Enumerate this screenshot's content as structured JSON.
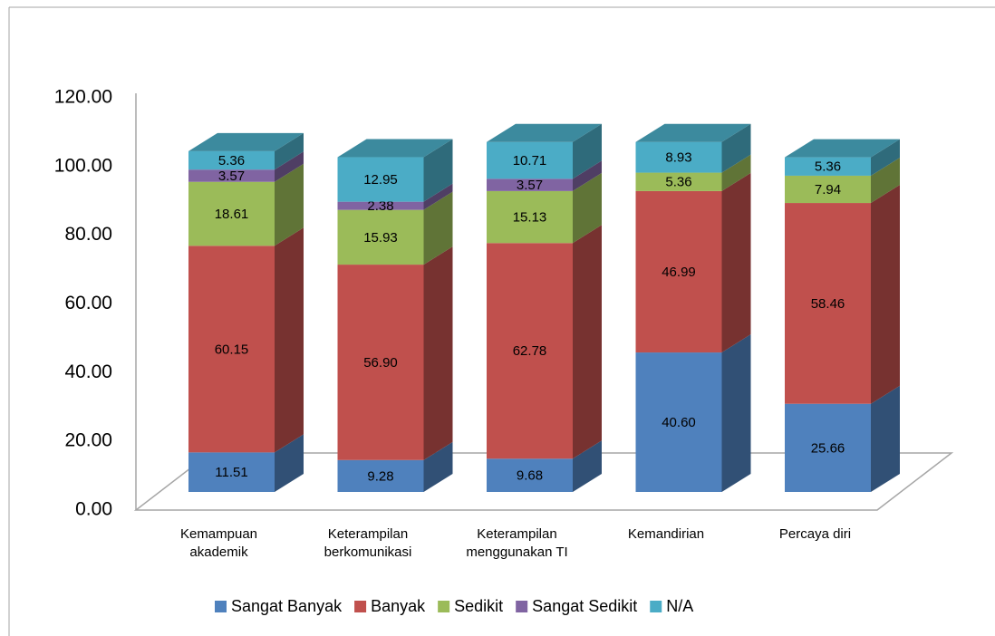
{
  "chart_data": {
    "type": "bar3d_stacked",
    "categories": [
      "Kemampuan\nakademik",
      "Keterampilan\nberkomunikasi",
      "Keterampilan\nmenggunakan TI",
      "Kemandirian",
      "Percaya diri"
    ],
    "series": [
      {
        "name": "Sangat Banyak",
        "color": "#4f81bd",
        "values": [
          11.51,
          9.28,
          9.68,
          40.6,
          25.66
        ],
        "value_labels": [
          "11.51",
          "9.28",
          "9.68",
          "40.60",
          "25.66"
        ]
      },
      {
        "name": "Banyak",
        "color": "#c0504d",
        "values": [
          60.15,
          56.9,
          62.78,
          46.99,
          58.46
        ],
        "value_labels": [
          "60.15",
          "56.90",
          "62.78",
          "46.99",
          "58.46"
        ]
      },
      {
        "name": "Sedikit",
        "color": "#9bbb59",
        "values": [
          18.61,
          15.93,
          15.13,
          5.36,
          7.94
        ],
        "value_labels": [
          "18.61",
          "15.93",
          "15.13",
          "5.36",
          "7.94"
        ]
      },
      {
        "name": "Sangat Sedikit",
        "color": "#8064a2",
        "values": [
          3.57,
          2.38,
          3.57,
          null,
          null
        ],
        "value_labels": [
          "3.57",
          "2.38",
          "3.57",
          null,
          null
        ]
      },
      {
        "name": "N/A",
        "color": "#4bacc6",
        "values": [
          5.36,
          12.95,
          10.71,
          8.93,
          5.36
        ],
        "value_labels": [
          "5.36",
          "12.95",
          "10.71",
          "8.93",
          "5.36"
        ]
      }
    ],
    "ylim": [
      0,
      120
    ],
    "yticks": [
      {
        "value": 0,
        "label": "0.00"
      },
      {
        "value": 20,
        "label": "20.00"
      },
      {
        "value": 40,
        "label": "40.00"
      },
      {
        "value": 60,
        "label": "60.00"
      },
      {
        "value": 80,
        "label": "80.00"
      },
      {
        "value": 100,
        "label": "100.00"
      },
      {
        "value": 120,
        "label": "120.00"
      }
    ],
    "legend": "bottom"
  }
}
